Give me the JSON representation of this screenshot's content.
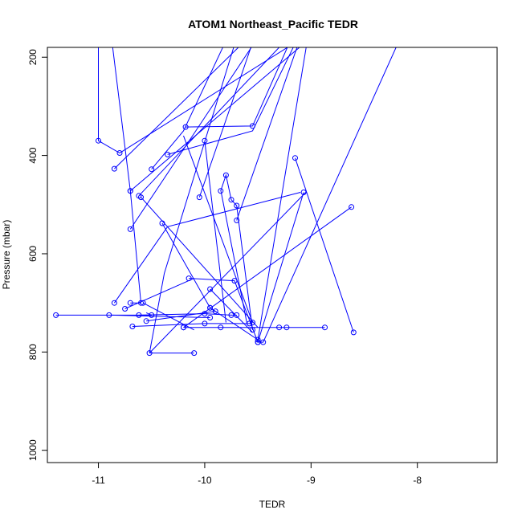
{
  "chart_data": {
    "type": "line",
    "title": "ATOM1 Northeast_Pacific TEDR",
    "xlabel": "TEDR",
    "ylabel": "Pressure (mbar)",
    "xlim": [
      -11.48,
      -7.25
    ],
    "ylim": [
      1025,
      180
    ],
    "y_reversed": true,
    "x_ticks": [
      -11,
      -10,
      -9,
      -8
    ],
    "x_tick_labels": [
      "-11",
      "-10",
      "-9",
      "-8"
    ],
    "y_ticks": [
      200,
      400,
      600,
      800,
      1000
    ],
    "y_tick_labels": [
      "200",
      "400",
      "600",
      "800",
      "1000"
    ],
    "grid": false,
    "color": "#0000ff",
    "series": [
      {
        "values": [
          [
            -10.94,
            100
          ],
          [
            -11.0,
            170
          ],
          [
            -11.0,
            370
          ],
          [
            -10.8,
            395
          ],
          [
            -9.0,
            150
          ]
        ],
        "points": [
          2,
          3
        ]
      },
      {
        "values": [
          [
            -10.9,
            120
          ],
          [
            -10.7,
            472
          ],
          [
            -10.6,
            700
          ],
          [
            -10.7,
            700
          ]
        ],
        "points": [
          1,
          2,
          3
        ]
      },
      {
        "values": [
          [
            -10.85,
            427
          ],
          [
            -9.4,
            120
          ]
        ],
        "points": [
          0
        ]
      },
      {
        "values": [
          [
            -10.18,
            342
          ],
          [
            -9.55,
            340
          ],
          [
            -9.1,
            120
          ]
        ],
        "points": [
          0,
          1
        ]
      },
      {
        "values": [
          [
            -10.5,
            428
          ],
          [
            -10.2,
            350
          ],
          [
            -9.7,
            120
          ]
        ],
        "points": [
          0
        ]
      },
      {
        "values": [
          [
            -10.35,
            398
          ],
          [
            -9.55,
            350
          ],
          [
            -9.1,
            150
          ]
        ],
        "points": [
          0
        ]
      },
      {
        "values": [
          [
            -10.0,
            370
          ],
          [
            -9.8,
            740
          ]
        ],
        "points": [
          0
        ]
      },
      {
        "values": [
          [
            -10.62,
            482
          ],
          [
            -9.3,
            180
          ]
        ],
        "points": [
          0
        ]
      },
      {
        "values": [
          [
            -10.7,
            472
          ],
          [
            -9.0,
            160
          ]
        ],
        "points": [
          0
        ]
      },
      {
        "values": [
          [
            -10.7,
            550
          ],
          [
            -9.5,
            160
          ]
        ],
        "points": [
          0
        ]
      },
      {
        "values": [
          [
            -10.6,
            485
          ],
          [
            -9.5,
            750
          ]
        ],
        "points": [
          0
        ]
      },
      {
        "values": [
          [
            -10.05,
            485
          ],
          [
            -9.55,
            170
          ]
        ],
        "points": [
          0
        ]
      },
      {
        "values": [
          [
            -9.85,
            472
          ],
          [
            -9.8,
            440
          ],
          [
            -9.75,
            490
          ],
          [
            -9.7,
            502
          ],
          [
            -9.55,
            755
          ]
        ],
        "points": [
          0,
          1,
          2,
          3,
          4
        ]
      },
      {
        "values": [
          [
            -9.7,
            532
          ],
          [
            -9.1,
            160
          ]
        ],
        "points": [
          0
        ]
      },
      {
        "values": [
          [
            -9.15,
            405
          ],
          [
            -8.6,
            760
          ]
        ],
        "points": [
          0,
          1
        ]
      },
      {
        "values": [
          [
            -8.62,
            505
          ],
          [
            -10.2,
            750
          ]
        ],
        "points": [
          0,
          1
        ]
      },
      {
        "values": [
          [
            -9.07,
            475
          ],
          [
            -9.5,
            780
          ]
        ],
        "points": [
          0,
          1
        ]
      },
      {
        "values": [
          [
            -10.4,
            538
          ],
          [
            -9.95,
            710
          ],
          [
            -9.5,
            775
          ],
          [
            -9.0,
            120
          ]
        ],
        "points": [
          0,
          1,
          2
        ]
      },
      {
        "values": [
          [
            -10.15,
            650
          ],
          [
            -9.72,
            655
          ],
          [
            -9.5,
            780
          ],
          [
            -9.45,
            780
          ],
          [
            -8.2,
            180
          ]
        ],
        "points": [
          0,
          1,
          2,
          3
        ]
      },
      {
        "values": [
          [
            -10.85,
            700
          ],
          [
            -10.35,
            545
          ],
          [
            -9.1,
            475
          ]
        ],
        "points": [
          0
        ]
      },
      {
        "values": [
          [
            -10.75,
            712
          ],
          [
            -10.1,
            650
          ]
        ],
        "points": [
          0
        ]
      },
      {
        "values": [
          [
            -11.4,
            725
          ],
          [
            -10.9,
            725
          ],
          [
            -10.5,
            725
          ],
          [
            -10.55,
            720
          ]
        ],
        "points": [
          0,
          1,
          2
        ]
      },
      {
        "values": [
          [
            -10.88,
            725
          ],
          [
            -9.95,
            730
          ]
        ],
        "points": [
          1
        ]
      },
      {
        "values": [
          [
            -10.55,
            737
          ],
          [
            -9.9,
            717
          ],
          [
            -9.95,
            710
          ]
        ],
        "points": [
          0,
          1,
          2
        ]
      },
      {
        "values": [
          [
            -10.62,
            725
          ],
          [
            -10.0,
            722
          ],
          [
            -9.75,
            725
          ],
          [
            -9.7,
            725
          ]
        ],
        "points": [
          0,
          1,
          2,
          3
        ]
      },
      {
        "values": [
          [
            -10.68,
            748
          ],
          [
            -10.0,
            742
          ],
          [
            -9.58,
            742
          ],
          [
            -9.55,
            740
          ]
        ],
        "points": [
          0,
          1,
          2,
          3
        ]
      },
      {
        "values": [
          [
            -10.2,
            750
          ],
          [
            -9.85,
            750
          ],
          [
            -9.3,
            750
          ],
          [
            -9.23,
            750
          ],
          [
            -8.87,
            750
          ]
        ],
        "points": [
          0,
          1,
          2,
          3,
          4
        ]
      },
      {
        "values": [
          [
            -10.52,
            802
          ],
          [
            -10.38,
            640
          ],
          [
            -9.7,
            160
          ]
        ],
        "points": [
          0
        ]
      },
      {
        "values": [
          [
            -10.52,
            802
          ],
          [
            -10.1,
            802
          ]
        ],
        "points": [
          1
        ]
      },
      {
        "values": [
          [
            -10.52,
            802
          ],
          [
            -9.05,
            475
          ]
        ],
        "points": []
      },
      {
        "values": [
          [
            -9.55,
            740
          ],
          [
            -10.2,
            360
          ]
        ],
        "points": []
      },
      {
        "values": [
          [
            -9.6,
            745
          ],
          [
            -9.85,
            470
          ]
        ],
        "points": []
      },
      {
        "values": [
          [
            -9.95,
            672
          ],
          [
            -9.55,
            760
          ]
        ],
        "points": [
          0
        ]
      },
      {
        "values": [
          [
            -10.58,
            700
          ],
          [
            -10.1,
            755
          ]
        ],
        "points": [
          0
        ]
      }
    ]
  }
}
